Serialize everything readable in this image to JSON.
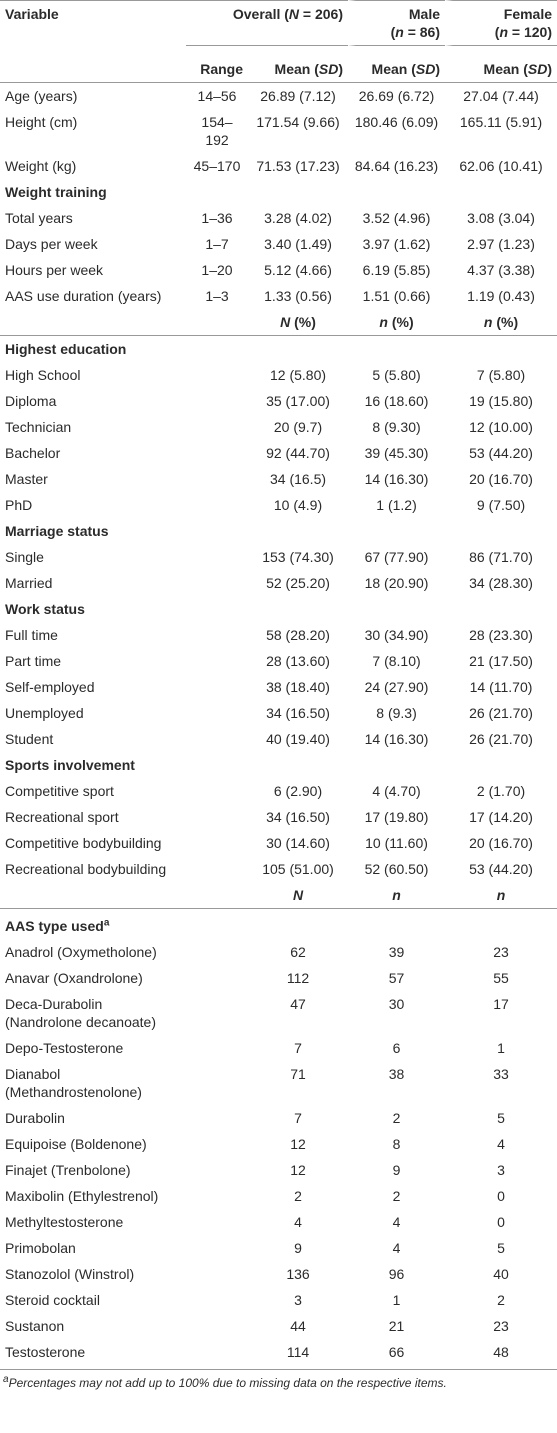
{
  "header": {
    "variable": "Variable",
    "overall": [
      "Overall (",
      "N",
      " = 206)"
    ],
    "male": {
      "name": "Male",
      "count": [
        "(",
        "n",
        " = 86)"
      ]
    },
    "female": {
      "name": "Female",
      "count": [
        "(",
        "n",
        " = 120)"
      ]
    }
  },
  "subheader": {
    "range": "Range",
    "means": [
      [
        "Mean (",
        "SD",
        ")"
      ],
      [
        "Mean (",
        "SD",
        ")"
      ],
      [
        "Mean (",
        "SD",
        ")"
      ]
    ]
  },
  "continuous": {
    "rows": [
      [
        "Age (years)",
        "14–56",
        "26.89 (7.12)",
        "26.69 (6.72)",
        "27.04 (7.44)"
      ],
      [
        "Height (cm)",
        "154–192",
        "171.54 (9.66)",
        "180.46 (6.09)",
        "165.11 (5.91)"
      ],
      [
        "Weight (kg)",
        "45–170",
        "71.53 (17.23)",
        "84.64 (16.23)",
        "62.06 (10.41)"
      ]
    ]
  },
  "weight_training": {
    "title": "Weight training",
    "rows": [
      [
        "Total years",
        "1–36",
        "3.28 (4.02)",
        "3.52 (4.96)",
        "3.08 (3.04)"
      ],
      [
        "Days per week",
        "1–7",
        "3.40 (1.49)",
        "3.97 (1.62)",
        "2.97 (1.23)"
      ],
      [
        "Hours per week",
        "1–20",
        "5.12 (4.66)",
        "6.19 (5.85)",
        "4.37 (3.38)"
      ],
      [
        "AAS use duration (years)",
        "1–3",
        "1.33 (0.56)",
        "1.51 (0.66)",
        "1.19 (0.43)"
      ]
    ]
  },
  "percent_header": [
    [
      "N",
      " (%)"
    ],
    [
      "n",
      " (%)"
    ],
    [
      "n",
      " (%)"
    ]
  ],
  "percent_sections": [
    {
      "title": "Highest education",
      "rows": [
        [
          "High School",
          "12 (5.80)",
          "5 (5.80)",
          "7 (5.80)"
        ],
        [
          "Diploma",
          "35 (17.00)",
          "16 (18.60)",
          "19 (15.80)"
        ],
        [
          "Technician",
          "20 (9.7)",
          "8 (9.30)",
          "12 (10.00)"
        ],
        [
          "Bachelor",
          "92 (44.70)",
          "39 (45.30)",
          "53 (44.20)"
        ],
        [
          "Master",
          "34 (16.5)",
          "14 (16.30)",
          "20 (16.70)"
        ],
        [
          "PhD",
          "10 (4.9)",
          "1 (1.2)",
          "9 (7.50)"
        ]
      ]
    },
    {
      "title": "Marriage status",
      "rows": [
        [
          "Single",
          "153 (74.30)",
          "67 (77.90)",
          "86 (71.70)"
        ],
        [
          "Married",
          "52 (25.20)",
          "18 (20.90)",
          "34 (28.30)"
        ]
      ]
    },
    {
      "title": "Work status",
      "rows": [
        [
          "Full time",
          "58 (28.20)",
          "30 (34.90)",
          "28 (23.30)"
        ],
        [
          "Part time",
          "28 (13.60)",
          "7 (8.10)",
          "21 (17.50)"
        ],
        [
          "Self-employed",
          "38 (18.40)",
          "24 (27.90)",
          "14 (11.70)"
        ],
        [
          "Unemployed",
          "34 (16.50)",
          "8 (9.3)",
          "26 (21.70)"
        ],
        [
          "Student",
          "40 (19.40)",
          "14 (16.30)",
          "26 (21.70)"
        ]
      ]
    },
    {
      "title": "Sports involvement",
      "rows": [
        [
          "Competitive sport",
          "6 (2.90)",
          "4 (4.70)",
          "2 (1.70)"
        ],
        [
          "Recreational sport",
          "34 (16.50)",
          "17 (19.80)",
          "17 (14.20)"
        ],
        [
          "Competitive bodybuilding",
          "30 (14.60)",
          "10 (11.60)",
          "20 (16.70)"
        ],
        [
          "Recreational bodybuilding",
          "105 (51.00)",
          "52 (60.50)",
          "53 (44.20)"
        ]
      ]
    }
  ],
  "count_header": [
    "N",
    "n",
    "n"
  ],
  "aas": {
    "title": [
      "AAS type used",
      "a"
    ],
    "rows": [
      [
        "Anadrol (Oxymetholone)",
        "62",
        "39",
        "23"
      ],
      [
        "Anavar (Oxandrolone)",
        "112",
        "57",
        "55"
      ],
      [
        "Deca-Durabolin (Nandrolone decanoate)",
        "47",
        "30",
        "17"
      ],
      [
        "Depo-Testosterone",
        "7",
        "6",
        "1"
      ],
      [
        "Dianabol (Methandrostenolone)",
        "71",
        "38",
        "33"
      ],
      [
        "Durabolin",
        "7",
        "2",
        "5"
      ],
      [
        "Equipoise (Boldenone)",
        "12",
        "8",
        "4"
      ],
      [
        "Finajet (Trenbolone)",
        "12",
        "9",
        "3"
      ],
      [
        "Maxibolin (Ethylestrenol)",
        "2",
        "2",
        "0"
      ],
      [
        "Methyltestosterone",
        "4",
        "4",
        "0"
      ],
      [
        "Primobolan",
        "9",
        "4",
        "5"
      ],
      [
        "Stanozolol (Winstrol)",
        "136",
        "96",
        "40"
      ],
      [
        "Steroid cocktail",
        "3",
        "1",
        "2"
      ],
      [
        "Sustanon",
        "44",
        "21",
        "23"
      ],
      [
        "Testosterone",
        "114",
        "66",
        "48"
      ]
    ]
  },
  "footnote": [
    "a",
    "Percentages may not add up to 100% due to missing data on the respective items."
  ]
}
